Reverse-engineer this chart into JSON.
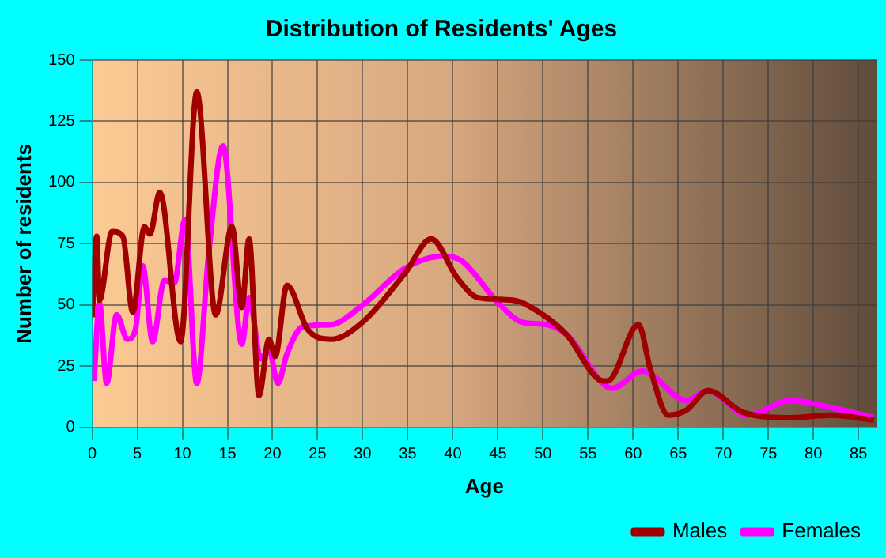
{
  "chart_data": {
    "type": "line",
    "title": "Distribution of Residents' Ages",
    "xlabel": "Age",
    "ylabel": "Number of residents",
    "series": [
      {
        "name": "Males",
        "color": "#a00000",
        "x": [
          0,
          0.5,
          0.8,
          2.2,
          3.4,
          4.5,
          5.8,
          6.4,
          7.5,
          9.8,
          11.6,
          13.7,
          15.5,
          16.6,
          17.4,
          18.5,
          19.6,
          20.3,
          21.6,
          23.9,
          26.5,
          30,
          34.7,
          37.6,
          40.5,
          42.8,
          46.6,
          50,
          52.6,
          56.7,
          57.2,
          60.6,
          61.9,
          63.9,
          65.9,
          68.3,
          72.3,
          77.5,
          82.1,
          86.7
        ],
        "values": [
          45,
          78,
          52,
          80,
          78,
          47,
          82,
          79,
          96,
          35,
          137,
          46,
          82,
          49,
          77,
          13,
          36,
          29,
          58,
          40,
          36,
          43,
          63,
          77,
          61,
          53,
          52,
          46,
          38,
          19,
          19,
          42,
          24,
          5,
          7,
          15,
          6,
          4,
          5,
          3
        ]
      },
      {
        "name": "Females",
        "color": "#ff00ff",
        "x": [
          0.2,
          0.8,
          1.6,
          2.7,
          3.9,
          4.8,
          5.6,
          6.7,
          8,
          9.1,
          10.3,
          11.6,
          12.9,
          14.5,
          16.6,
          17.4,
          18.7,
          19.6,
          20.6,
          21.6,
          23.3,
          26.5,
          30,
          34.7,
          39,
          41,
          45,
          47.7,
          50.3,
          52.6,
          57.7,
          61,
          65.9,
          68.3,
          72.6,
          77.5,
          82.1,
          86.7
        ],
        "values": [
          19,
          51,
          18,
          46,
          36,
          40,
          66,
          35,
          60,
          59,
          85,
          18,
          70,
          115,
          34,
          53,
          28,
          32,
          18,
          30,
          41,
          42,
          50,
          65,
          70,
          68,
          51,
          43,
          42,
          38,
          16,
          23,
          11,
          15,
          5,
          11,
          8,
          4
        ]
      }
    ],
    "xlim": [
      0,
      87
    ],
    "xticks": [
      0,
      5,
      10,
      15,
      20,
      25,
      30,
      35,
      40,
      45,
      50,
      55,
      60,
      65,
      70,
      75,
      80,
      85
    ],
    "ylim": [
      0,
      150
    ],
    "yticks": [
      0,
      25,
      50,
      75,
      100,
      125,
      150
    ],
    "grid": true,
    "legend": "bottom right",
    "marker": "none",
    "line_style": "solid"
  }
}
